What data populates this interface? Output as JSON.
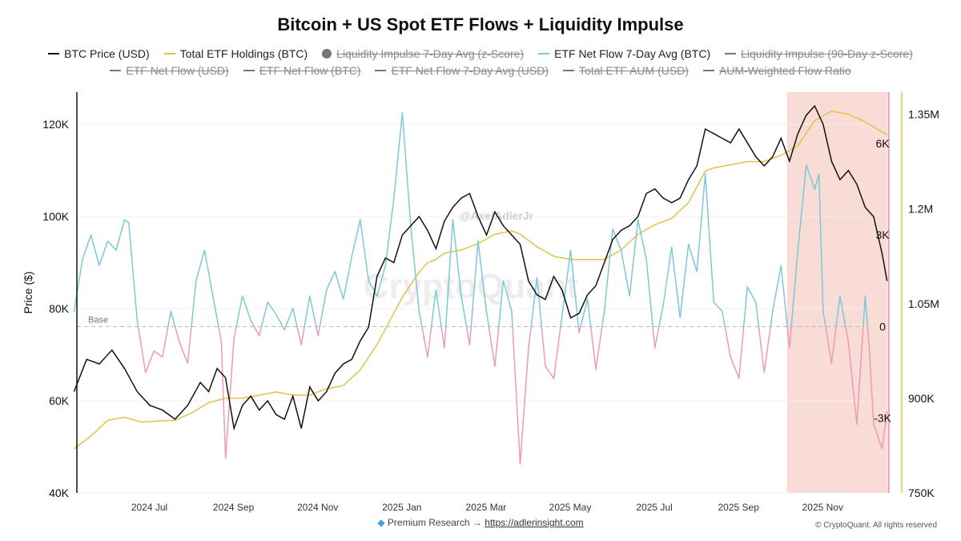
{
  "title": "Bitcoin + US Spot ETF Flows + Liquidity Impulse",
  "watermark": "CryptoQuant",
  "author_tag": "@AxelAdlerJr",
  "footer": {
    "prefix": "Premium Research →",
    "link": "https://adlerinsight.com"
  },
  "copyright": "© CryptoQuant. All rights reserved",
  "legend": {
    "row1": [
      {
        "label": "BTC Price (USD)",
        "color": "#111111",
        "active": true,
        "marker": "line"
      },
      {
        "label": "Total ETF Holdings (BTC)",
        "color": "#e3c24a",
        "active": true,
        "marker": "line"
      },
      {
        "label": "Liquidity Impulse 7-Day Avg (z-Score)",
        "color": "#777777",
        "active": false,
        "marker": "dot"
      },
      {
        "label": "ETF Net Flow 7-Day Avg (BTC)",
        "color": "#7cc8d9",
        "active": true,
        "marker": "line"
      },
      {
        "label": "Liquidity Impulse (90-Day z-Score)",
        "color": "#777777",
        "active": false,
        "marker": "line"
      }
    ],
    "row2": [
      {
        "label": "ETF Net Flow (USD)",
        "color": "#777777",
        "active": false,
        "marker": "line"
      },
      {
        "label": "ETF Net Flow (BTC)",
        "color": "#777777",
        "active": false,
        "marker": "line"
      },
      {
        "label": "ETF Net Flow 7-Day Avg (USD)",
        "color": "#777777",
        "active": false,
        "marker": "line"
      },
      {
        "label": "Total ETF AUM (USD)",
        "color": "#777777",
        "active": false,
        "marker": "line"
      },
      {
        "label": "AUM-Weighted Flow Ratio",
        "color": "#777777",
        "active": false,
        "marker": "line"
      }
    ]
  },
  "chart_data": {
    "type": "line",
    "x_ticks": [
      "2024 Jul",
      "2024 Sep",
      "2024 Nov",
      "2025 Jan",
      "2025 Mar",
      "2025 May",
      "2025 Jul",
      "2025 Sep",
      "2025 Nov"
    ],
    "x_range": [
      -0.3,
      9.36
    ],
    "y_left": {
      "label": "Price ($)",
      "ticks": [
        "40K",
        "60K",
        "80K",
        "100K",
        "120K"
      ],
      "tick_values": [
        40000,
        60000,
        80000,
        100000,
        120000
      ],
      "range": [
        40000,
        127000
      ]
    },
    "y_flow": {
      "ticks": [
        "-3K",
        "0",
        "3K",
        "6K"
      ],
      "tick_values": [
        -3000,
        0,
        3000,
        6000
      ],
      "range": [
        -5450,
        7680
      ]
    },
    "y_holdings": {
      "ticks": [
        "750K",
        "900K",
        "1.05M",
        "1.2M",
        "1.35M"
      ],
      "tick_values": [
        750000,
        900000,
        1050000,
        1200000,
        1350000
      ],
      "range": [
        750000,
        1385000
      ]
    },
    "baseline": {
      "label": "Base",
      "value": 0
    },
    "highlight_band": {
      "x_start": 8.17,
      "x_end": 9.36,
      "color": "#f8c9c0"
    },
    "colors": {
      "price": "#111111",
      "holdings": "#e3c24a",
      "flow_positive": "#7cc8d9",
      "flow_negative": "#ee9ab5"
    },
    "series": [
      {
        "name": "BTC Price (USD)",
        "axis": "left",
        "points": [
          [
            -0.3,
            62000
          ],
          [
            -0.15,
            69000
          ],
          [
            0,
            68000
          ],
          [
            0.15,
            71000
          ],
          [
            0.3,
            67000
          ],
          [
            0.45,
            62000
          ],
          [
            0.6,
            59000
          ],
          [
            0.75,
            58000
          ],
          [
            0.9,
            56000
          ],
          [
            1.05,
            59000
          ],
          [
            1.2,
            64000
          ],
          [
            1.3,
            62000
          ],
          [
            1.4,
            67000
          ],
          [
            1.5,
            65000
          ],
          [
            1.6,
            54000
          ],
          [
            1.7,
            59000
          ],
          [
            1.8,
            61000
          ],
          [
            1.9,
            58000
          ],
          [
            2.0,
            60000
          ],
          [
            2.1,
            57000
          ],
          [
            2.2,
            56000
          ],
          [
            2.3,
            61000
          ],
          [
            2.4,
            54000
          ],
          [
            2.5,
            63000
          ],
          [
            2.6,
            60000
          ],
          [
            2.7,
            62000
          ],
          [
            2.8,
            66000
          ],
          [
            2.9,
            68000
          ],
          [
            3.0,
            69000
          ],
          [
            3.1,
            73000
          ],
          [
            3.2,
            76000
          ],
          [
            3.3,
            87000
          ],
          [
            3.4,
            91000
          ],
          [
            3.5,
            90000
          ],
          [
            3.6,
            96000
          ],
          [
            3.7,
            98000
          ],
          [
            3.8,
            100000
          ],
          [
            3.9,
            97000
          ],
          [
            4.0,
            93000
          ],
          [
            4.1,
            99000
          ],
          [
            4.2,
            102000
          ],
          [
            4.3,
            104000
          ],
          [
            4.4,
            105000
          ],
          [
            4.5,
            100000
          ],
          [
            4.6,
            96000
          ],
          [
            4.7,
            101000
          ],
          [
            4.8,
            98000
          ],
          [
            4.9,
            96000
          ],
          [
            5.0,
            94000
          ],
          [
            5.1,
            86000
          ],
          [
            5.2,
            83000
          ],
          [
            5.3,
            82000
          ],
          [
            5.4,
            87000
          ],
          [
            5.5,
            84000
          ],
          [
            5.6,
            78000
          ],
          [
            5.7,
            79000
          ],
          [
            5.8,
            83000
          ],
          [
            5.9,
            85000
          ],
          [
            6.0,
            90000
          ],
          [
            6.1,
            95000
          ],
          [
            6.2,
            97000
          ],
          [
            6.3,
            98000
          ],
          [
            6.4,
            100000
          ],
          [
            6.5,
            105000
          ],
          [
            6.6,
            106000
          ],
          [
            6.7,
            104000
          ],
          [
            6.8,
            103000
          ],
          [
            6.9,
            104000
          ],
          [
            7.0,
            108000
          ],
          [
            7.1,
            111000
          ],
          [
            7.2,
            119000
          ],
          [
            7.3,
            118000
          ],
          [
            7.4,
            117000
          ],
          [
            7.5,
            116000
          ],
          [
            7.6,
            119000
          ],
          [
            7.7,
            116000
          ],
          [
            7.8,
            113000
          ],
          [
            7.9,
            111000
          ],
          [
            8.0,
            113000
          ],
          [
            8.1,
            117000
          ],
          [
            8.2,
            112000
          ],
          [
            8.3,
            118000
          ],
          [
            8.4,
            122000
          ],
          [
            8.5,
            124000
          ],
          [
            8.6,
            120000
          ],
          [
            8.7,
            112000
          ],
          [
            8.8,
            108000
          ],
          [
            8.9,
            110000
          ],
          [
            9.0,
            107000
          ],
          [
            9.1,
            102000
          ],
          [
            9.2,
            100000
          ],
          [
            9.3,
            92000
          ],
          [
            9.36,
            86000
          ]
        ]
      },
      {
        "name": "Total ETF Holdings (BTC)",
        "axis": "holdings",
        "points": [
          [
            -0.3,
            820000
          ],
          [
            -0.1,
            840000
          ],
          [
            0.1,
            865000
          ],
          [
            0.3,
            870000
          ],
          [
            0.5,
            862000
          ],
          [
            0.7,
            864000
          ],
          [
            0.9,
            865000
          ],
          [
            1.1,
            877000
          ],
          [
            1.3,
            893000
          ],
          [
            1.5,
            900000
          ],
          [
            1.7,
            900000
          ],
          [
            1.9,
            905000
          ],
          [
            2.1,
            910000
          ],
          [
            2.3,
            905000
          ],
          [
            2.5,
            905000
          ],
          [
            2.7,
            915000
          ],
          [
            2.9,
            920000
          ],
          [
            3.1,
            945000
          ],
          [
            3.2,
            965000
          ],
          [
            3.3,
            985000
          ],
          [
            3.4,
            1010000
          ],
          [
            3.5,
            1035000
          ],
          [
            3.6,
            1060000
          ],
          [
            3.7,
            1080000
          ],
          [
            3.8,
            1100000
          ],
          [
            3.9,
            1115000
          ],
          [
            4.0,
            1120000
          ],
          [
            4.1,
            1130000
          ],
          [
            4.3,
            1135000
          ],
          [
            4.5,
            1145000
          ],
          [
            4.7,
            1160000
          ],
          [
            4.9,
            1165000
          ],
          [
            5.0,
            1160000
          ],
          [
            5.2,
            1140000
          ],
          [
            5.4,
            1125000
          ],
          [
            5.6,
            1120000
          ],
          [
            5.8,
            1120000
          ],
          [
            6.0,
            1120000
          ],
          [
            6.2,
            1135000
          ],
          [
            6.4,
            1160000
          ],
          [
            6.6,
            1175000
          ],
          [
            6.8,
            1185000
          ],
          [
            7.0,
            1210000
          ],
          [
            7.1,
            1235000
          ],
          [
            7.2,
            1260000
          ],
          [
            7.3,
            1265000
          ],
          [
            7.5,
            1270000
          ],
          [
            7.7,
            1275000
          ],
          [
            7.9,
            1275000
          ],
          [
            8.1,
            1285000
          ],
          [
            8.3,
            1300000
          ],
          [
            8.4,
            1320000
          ],
          [
            8.5,
            1340000
          ],
          [
            8.7,
            1355000
          ],
          [
            8.9,
            1350000
          ],
          [
            9.1,
            1338000
          ],
          [
            9.2,
            1330000
          ],
          [
            9.3,
            1322000
          ],
          [
            9.36,
            1318000
          ]
        ]
      },
      {
        "name": "ETF Net Flow 7-Day Avg (BTC)",
        "axis": "flow",
        "points": [
          [
            -0.3,
            500
          ],
          [
            -0.2,
            2200
          ],
          [
            -0.1,
            3000
          ],
          [
            0.0,
            2000
          ],
          [
            0.1,
            2800
          ],
          [
            0.2,
            2500
          ],
          [
            0.3,
            3500
          ],
          [
            0.35,
            3400
          ],
          [
            0.45,
            200
          ],
          [
            0.55,
            -1500
          ],
          [
            0.65,
            -800
          ],
          [
            0.75,
            -1000
          ],
          [
            0.85,
            500
          ],
          [
            0.95,
            -500
          ],
          [
            1.05,
            -1200
          ],
          [
            1.15,
            1500
          ],
          [
            1.25,
            2500
          ],
          [
            1.35,
            1000
          ],
          [
            1.45,
            -500
          ],
          [
            1.5,
            -4300
          ],
          [
            1.6,
            -400
          ],
          [
            1.7,
            1000
          ],
          [
            1.8,
            200
          ],
          [
            1.9,
            -300
          ],
          [
            2.0,
            800
          ],
          [
            2.1,
            400
          ],
          [
            2.2,
            -100
          ],
          [
            2.3,
            600
          ],
          [
            2.4,
            -600
          ],
          [
            2.5,
            1000
          ],
          [
            2.6,
            -300
          ],
          [
            2.7,
            1200
          ],
          [
            2.8,
            1800
          ],
          [
            2.9,
            900
          ],
          [
            3.0,
            2300
          ],
          [
            3.1,
            3500
          ],
          [
            3.2,
            1500
          ],
          [
            3.3,
            1000
          ],
          [
            3.4,
            2000
          ],
          [
            3.5,
            4200
          ],
          [
            3.6,
            7000
          ],
          [
            3.7,
            3300
          ],
          [
            3.8,
            500
          ],
          [
            3.9,
            -1000
          ],
          [
            4.0,
            1200
          ],
          [
            4.1,
            -700
          ],
          [
            4.2,
            3500
          ],
          [
            4.3,
            1000
          ],
          [
            4.4,
            -600
          ],
          [
            4.5,
            2800
          ],
          [
            4.6,
            500
          ],
          [
            4.7,
            -1300
          ],
          [
            4.8,
            1500
          ],
          [
            4.9,
            500
          ],
          [
            5.0,
            -4500
          ],
          [
            5.1,
            -700
          ],
          [
            5.2,
            1600
          ],
          [
            5.3,
            -1300
          ],
          [
            5.4,
            -1700
          ],
          [
            5.5,
            400
          ],
          [
            5.6,
            2500
          ],
          [
            5.7,
            -200
          ],
          [
            5.8,
            900
          ],
          [
            5.9,
            -1400
          ],
          [
            6.0,
            500
          ],
          [
            6.1,
            3200
          ],
          [
            6.2,
            2500
          ],
          [
            6.3,
            1000
          ],
          [
            6.4,
            3500
          ],
          [
            6.5,
            2200
          ],
          [
            6.6,
            -700
          ],
          [
            6.7,
            700
          ],
          [
            6.8,
            2600
          ],
          [
            6.9,
            300
          ],
          [
            7.0,
            2700
          ],
          [
            7.1,
            1800
          ],
          [
            7.2,
            5000
          ],
          [
            7.3,
            800
          ],
          [
            7.4,
            500
          ],
          [
            7.5,
            -1000
          ],
          [
            7.6,
            -1700
          ],
          [
            7.7,
            1300
          ],
          [
            7.8,
            800
          ],
          [
            7.9,
            -1500
          ],
          [
            8.0,
            500
          ],
          [
            8.1,
            2000
          ],
          [
            8.2,
            -700
          ],
          [
            8.3,
            2500
          ],
          [
            8.4,
            5300
          ],
          [
            8.5,
            4500
          ],
          [
            8.55,
            5000
          ],
          [
            8.6,
            500
          ],
          [
            8.7,
            -1200
          ],
          [
            8.8,
            1000
          ],
          [
            8.9,
            -500
          ],
          [
            9.0,
            -3200
          ],
          [
            9.1,
            1000
          ],
          [
            9.15,
            -800
          ],
          [
            9.2,
            -3200
          ],
          [
            9.3,
            -4000
          ],
          [
            9.36,
            -2800
          ]
        ]
      }
    ]
  }
}
